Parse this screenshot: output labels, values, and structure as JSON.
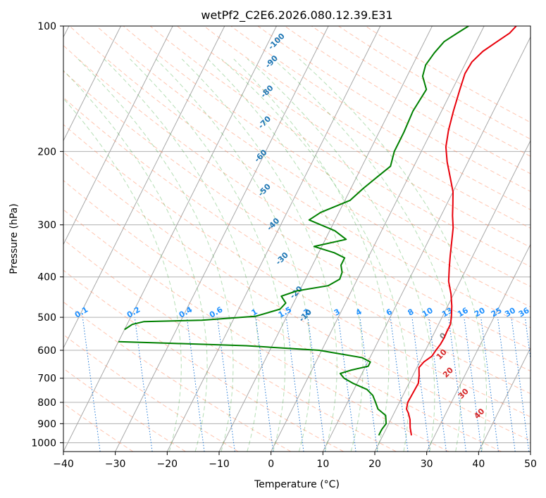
{
  "chart_data": {
    "type": "line",
    "title": "wetPf2_C2E6.2026.080.12.39.E31",
    "xlabel": "Temperature (°C)",
    "ylabel": "Pressure (hPa)",
    "xlim": [
      -40,
      50
    ],
    "ylim": [
      1050,
      100
    ],
    "y_scale": "log",
    "x_ticks": [
      -40,
      -30,
      -20,
      -10,
      0,
      10,
      20,
      30,
      40,
      50
    ],
    "y_ticks": [
      100,
      200,
      300,
      400,
      500,
      600,
      700,
      800,
      900,
      1000
    ],
    "grid": true,
    "series": [
      {
        "color": "#e8000b",
        "points": [
          [
            25.5,
            960
          ],
          [
            24.5,
            920
          ],
          [
            23.7,
            880
          ],
          [
            22.8,
            850
          ],
          [
            22.0,
            830
          ],
          [
            21.6,
            800
          ],
          [
            21.7,
            760
          ],
          [
            21.8,
            720
          ],
          [
            21.2,
            690
          ],
          [
            20.4,
            660
          ],
          [
            20.8,
            640
          ],
          [
            21.8,
            620
          ],
          [
            22.0,
            600
          ],
          [
            22.3,
            580
          ],
          [
            22.4,
            560
          ],
          [
            22.3,
            540
          ],
          [
            22.3,
            520
          ],
          [
            21.8,
            500
          ],
          [
            20.8,
            470
          ],
          [
            19.5,
            440
          ],
          [
            17.8,
            410
          ],
          [
            16.6,
            380
          ],
          [
            15.6,
            355
          ],
          [
            14.6,
            330
          ],
          [
            13.5,
            305
          ],
          [
            12.2,
            285
          ],
          [
            11.2,
            268
          ],
          [
            10.0,
            250
          ],
          [
            8.2,
            232
          ],
          [
            6.0,
            212
          ],
          [
            4.3,
            195
          ],
          [
            3.2,
            178
          ],
          [
            2.3,
            160
          ],
          [
            1.5,
            143
          ],
          [
            0.9,
            130
          ],
          [
            1.1,
            122
          ],
          [
            2.2,
            115
          ],
          [
            4.0,
            109
          ],
          [
            5.6,
            104
          ],
          [
            6.2,
            100
          ]
        ]
      },
      {
        "color": "#008000",
        "points": [
          [
            19.2,
            960
          ],
          [
            19.2,
            930
          ],
          [
            19.5,
            900
          ],
          [
            18.6,
            860
          ],
          [
            16.5,
            830
          ],
          [
            15.4,
            800
          ],
          [
            14.2,
            770
          ],
          [
            12.5,
            745
          ],
          [
            9.2,
            720
          ],
          [
            7.0,
            700
          ],
          [
            5.8,
            682
          ],
          [
            7.5,
            670
          ],
          [
            10.5,
            655
          ],
          [
            10.5,
            640
          ],
          [
            8.5,
            625
          ],
          [
            -0.5,
            600
          ],
          [
            -15.0,
            585
          ],
          [
            -30.0,
            577
          ],
          [
            -40.0,
            572
          ],
          null,
          [
            -40.0,
            535
          ],
          [
            -39.0,
            520
          ],
          [
            -37.0,
            512
          ],
          [
            -26.0,
            508
          ],
          [
            -16.0,
            497
          ],
          [
            -12.0,
            478
          ],
          [
            -11.5,
            462
          ],
          [
            -13.0,
            445
          ],
          [
            -10.5,
            432
          ],
          [
            -5.0,
            420
          ],
          [
            -3.4,
            405
          ],
          [
            -3.6,
            390
          ],
          [
            -4.5,
            375
          ],
          [
            -4.5,
            360
          ],
          [
            -7.0,
            350
          ],
          [
            -11.5,
            338
          ],
          [
            -6.0,
            325
          ],
          [
            -9.0,
            310
          ],
          [
            -15.0,
            292
          ],
          [
            -13.5,
            280
          ],
          [
            -9.0,
            262
          ],
          [
            -7.6,
            245
          ],
          [
            -6.0,
            230
          ],
          [
            -4.5,
            217
          ],
          [
            -5.2,
            200
          ],
          [
            -5.2,
            180
          ],
          [
            -5.5,
            160
          ],
          [
            -5.0,
            142
          ],
          [
            -7.0,
            132
          ],
          [
            -7.5,
            124
          ],
          [
            -7.0,
            116
          ],
          [
            -6.2,
            109
          ],
          [
            -4.5,
            104
          ],
          [
            -3.0,
            100
          ]
        ]
      }
    ],
    "dry_adiabat_labels": [
      "-100",
      "-90",
      "-80",
      "-70",
      "-60",
      "-50",
      "-40",
      "-30",
      "-20",
      "-10",
      "0",
      "10",
      "20",
      "30",
      "40"
    ],
    "mixing_ratio_labels": [
      "0.1",
      "0.2",
      "0.4",
      "0.6",
      "1",
      "1.5",
      "2",
      "3",
      "4",
      "6",
      "8",
      "10",
      "13",
      "16",
      "20",
      "25",
      "30",
      "36"
    ]
  }
}
